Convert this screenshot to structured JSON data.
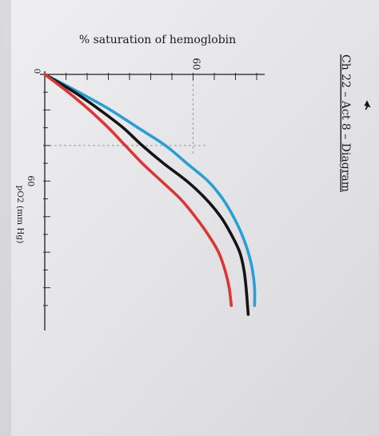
{
  "header": {
    "title": "Ch 22 – Act 8 – Diagram"
  },
  "chart_data": {
    "type": "line",
    "ylabel": "% saturation of hemoglobin",
    "xlabel": "pO2 (mm Hg)",
    "x_tick_labels": [
      "0",
      "60"
    ],
    "y_tick_labels": [
      "60"
    ],
    "xlim": [
      0,
      135
    ],
    "ylim": [
      0,
      100
    ],
    "grid": false,
    "orientation": "rotated 90° clockwise (pO2 increases downward, saturation increases to the right)",
    "colors": {
      "blue": "#2a9fd6",
      "black": "#141414",
      "red": "#d93636"
    },
    "series": [
      {
        "color": "blue",
        "x": [
          0,
          10,
          20,
          30,
          40,
          50,
          60,
          70,
          80,
          90,
          100,
          110,
          120,
          130
        ],
        "y": [
          0,
          16,
          31,
          44,
          57,
          67,
          77,
          84,
          89,
          93,
          96,
          98,
          99,
          99
        ]
      },
      {
        "color": "black",
        "x": [
          0,
          10,
          20,
          30,
          40,
          50,
          60,
          70,
          80,
          90,
          100,
          110,
          120,
          135
        ],
        "y": [
          0,
          14,
          26,
          37,
          46,
          56,
          67,
          76,
          83,
          88,
          92,
          94,
          95,
          96
        ]
      },
      {
        "color": "red",
        "x": [
          0,
          10,
          20,
          30,
          40,
          50,
          60,
          70,
          80,
          90,
          100,
          110,
          120,
          130
        ],
        "y": [
          0,
          11,
          21,
          30,
          38,
          46,
          55,
          64,
          71,
          77,
          82,
          85,
          87,
          88
        ]
      }
    ]
  }
}
